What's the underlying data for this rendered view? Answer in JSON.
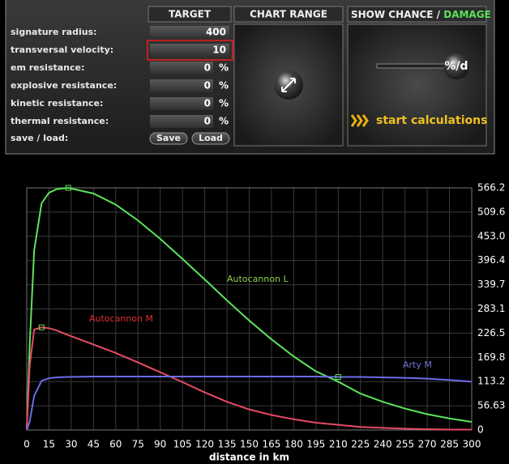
{
  "panel": {
    "headers": {
      "target": "TARGET",
      "chart_range": "CHART RANGE",
      "show_chance": "SHOW CHANCE /",
      "damage": "DAMAGE"
    },
    "fields": [
      {
        "label": "signature radius:",
        "value": "400"
      },
      {
        "label": "transversal velocity:",
        "value": "10"
      },
      {
        "label": "em resistance:",
        "value": "0",
        "unit": "%"
      },
      {
        "label": "explosive resistance:",
        "value": "0",
        "unit": "%"
      },
      {
        "label": "kinetic resistance:",
        "value": "0",
        "unit": "%"
      },
      {
        "label": "thermal resistance:",
        "value": "0",
        "unit": "%"
      }
    ],
    "save_load": {
      "label": "save / load:",
      "save": "Save",
      "load": "Load"
    },
    "toggle": "%/d",
    "start": "start calculations"
  },
  "chart_data": {
    "type": "line",
    "xlabel": "distance in km",
    "x": [
      0,
      2,
      5,
      10,
      15,
      20,
      28,
      45,
      60,
      75,
      90,
      105,
      120,
      135,
      150,
      165,
      180,
      195,
      210,
      225,
      240,
      255,
      270,
      285,
      300
    ],
    "series": [
      {
        "name": "Autocannon L",
        "color": "#5ce35c",
        "label_color": "#8fd04f",
        "values": [
          0,
          200,
          420,
          530,
          555,
          563,
          566.2,
          553,
          527,
          490,
          447,
          400,
          352,
          303,
          256,
          212,
          172,
          137,
          113,
          85,
          66,
          50,
          37,
          27,
          19
        ]
      },
      {
        "name": "Autocannon M",
        "color": "#e64a63",
        "label_color": "#e03030",
        "values": [
          0,
          150,
          235,
          240,
          238,
          233,
          222,
          200,
          180,
          158,
          135,
          112,
          88,
          66,
          48,
          35,
          25,
          17,
          12,
          7,
          5,
          3,
          2,
          1,
          1
        ]
      },
      {
        "name": "Arty M",
        "color": "#6c6ce6",
        "label_color": "#6b78d8",
        "values": [
          0,
          20,
          80,
          115,
          121,
          123,
          124,
          125,
          125,
          125,
          125,
          125,
          125,
          125,
          125,
          125,
          125,
          125,
          124,
          124,
          123,
          122,
          120,
          117,
          113
        ]
      }
    ],
    "highlight_points": [
      {
        "x": 28,
        "y": 566.2
      },
      {
        "x": 10,
        "y": 240
      },
      {
        "x": 210,
        "y": 124
      }
    ],
    "xlim": [
      0,
      300
    ],
    "ylim": [
      0,
      566.2
    ],
    "xticks": [
      0,
      15,
      30,
      45,
      60,
      75,
      90,
      105,
      120,
      135,
      150,
      165,
      180,
      195,
      210,
      225,
      240,
      255,
      270,
      285,
      300
    ],
    "yticks": [
      0,
      56.63,
      113.2,
      169.8,
      226.5,
      283.1,
      339.7,
      396.4,
      {
        "value": 453,
        "label": "453.0"
      },
      509.6,
      566.2
    ],
    "grid": true
  }
}
